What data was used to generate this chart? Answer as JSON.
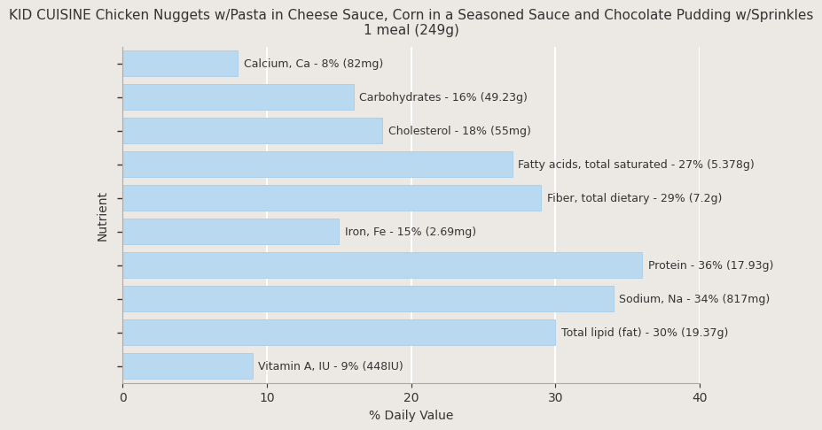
{
  "title": "KID CUISINE Chicken Nuggets w/Pasta in Cheese Sauce, Corn in a Seasoned Sauce and Chocolate Pudding w/Sprinkles\n1 meal (249g)",
  "xlabel": "% Daily Value",
  "ylabel": "Nutrient",
  "background_color": "#ece9e4",
  "plot_bg_color": "#ece9e4",
  "bar_color": "#b8d9f0",
  "bar_edge_color": "#a0c8e8",
  "text_color": "#333333",
  "xlim": [
    0,
    40
  ],
  "nutrients": [
    "Calcium, Ca - 8% (82mg)",
    "Carbohydrates - 16% (49.23g)",
    "Cholesterol - 18% (55mg)",
    "Fatty acids, total saturated - 27% (5.378g)",
    "Fiber, total dietary - 29% (7.2g)",
    "Iron, Fe - 15% (2.69mg)",
    "Protein - 36% (17.93g)",
    "Sodium, Na - 34% (817mg)",
    "Total lipid (fat) - 30% (19.37g)",
    "Vitamin A, IU - 9% (448IU)"
  ],
  "values": [
    8,
    16,
    18,
    27,
    29,
    15,
    36,
    34,
    30,
    9
  ],
  "title_fontsize": 11,
  "axis_label_fontsize": 10,
  "tick_fontsize": 10,
  "bar_label_fontsize": 9
}
